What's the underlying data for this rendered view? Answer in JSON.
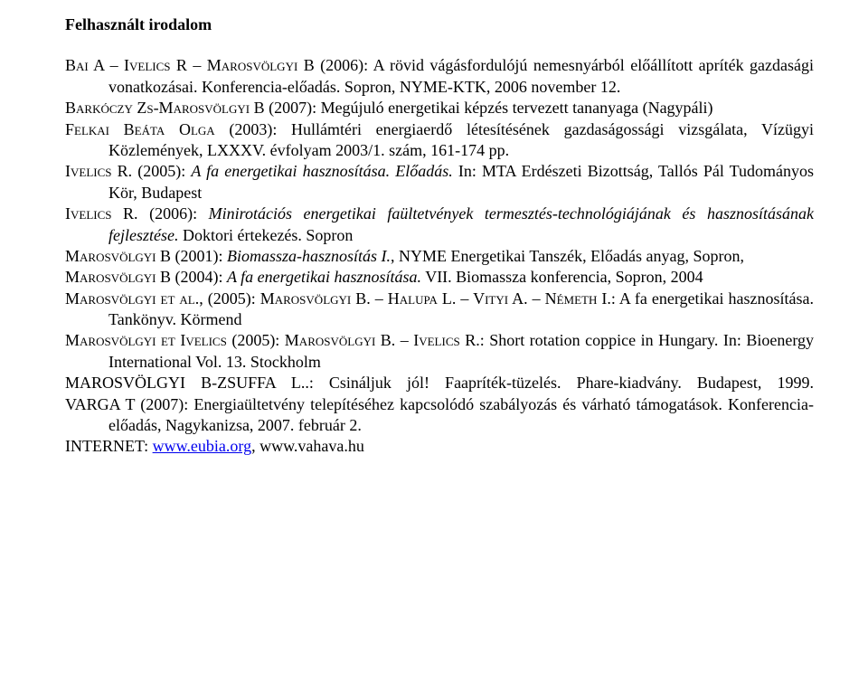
{
  "heading": "Felhasznált irodalom",
  "entries": {
    "e1": {
      "authors": "Bai A – Ivelics R – Marosvölgyi B",
      "rest": " (2006): A rövid vágásfordulójú nemesnyárból előállított apríték gazdasági vonatkozásai. Konferencia-előadás. Sopron, NYME-KTK, 2006 november 12."
    },
    "e2": {
      "a1": "Barkóczy Zs-Marosvölgyi B",
      "mid1": " (2007): Megújuló energetikai képzés tervezett tananyaga (Nagypáli)",
      "a2": "Felkai Beáta Olga",
      "rest": " (2003): Hullámtéri energiaerdő létesítésének gazdaságossági vizsgálata, Vízügyi Közlemények, LXXXV. évfolyam 2003/1. szám, 161-174 pp."
    },
    "e3": {
      "authors": "Ivelics R.",
      "pre_it": " (2005): ",
      "it": "A fa energetikai hasznosítása. Előadás.",
      "rest": " In: MTA Erdészeti Bizottság, Tallós Pál Tudományos Kör, Budapest"
    },
    "e4": {
      "authors": "Ivelics R.",
      "pre_it": " (2006): ",
      "it": "Minirotációs energetikai faültetvények termesztés-technológiájának és hasznosításának fejlesztése.",
      "rest": " Doktori értekezés. Sopron"
    },
    "e5": {
      "authors": "Marosvölgyi B",
      "pre_it": " (2001): ",
      "it": "Biomassza-hasznosítás I.",
      "rest": ", NYME Energetikai Tanszék, Előadás anyag, Sopron,"
    },
    "e6": {
      "authors": "Marosvölgyi B",
      "pre_it": " (2004): ",
      "it": "A fa energetikai hasznosítása.",
      "rest": " VII. Biomassza konferencia, Sopron, 2004"
    },
    "e7": {
      "a1": "Marosvölgyi et al.",
      "mid": ", (2005): ",
      "a2": "Marosvölgyi B. – Halupa L. – Vityi A. – Németh I",
      "rest": ".: A fa energetikai hasznosítása. Tankönyv. Körmend"
    },
    "e8": {
      "a1": "Marosvölgyi et Ivelics",
      "mid": " (2005): ",
      "a2": "Marosvölgyi B. – Ivelics R",
      "rest": ".: Short rotation coppice in Hungary. In: Bioenergy International Vol. 13. Stockholm"
    },
    "e9": {
      "authors": "MAROSVÖLGYI B-ZSUFFA L.",
      "rest": ".: Csináljuk jól! Faapríték-tüzelés. Phare-kiadvány. Budapest, 1999."
    },
    "e10": {
      "authors": "VARGA T",
      "rest": " (2007): Energiaültetvény telepítéséhez kapcsolódó szabályozás és várható támogatások. Konferencia-előadás, Nagykanizsa, 2007. február 2."
    },
    "inet": {
      "label": "INTERNET: ",
      "link1": "www.eubia.org",
      "sep": ", ",
      "link2": "www.vahava.hu"
    }
  }
}
